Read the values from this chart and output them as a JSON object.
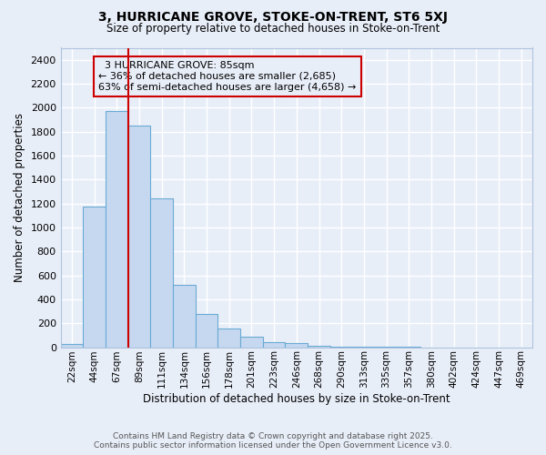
{
  "title1": "3, HURRICANE GROVE, STOKE-ON-TRENT, ST6 5XJ",
  "title2": "Size of property relative to detached houses in Stoke-on-Trent",
  "xlabel": "Distribution of detached houses by size in Stoke-on-Trent",
  "ylabel": "Number of detached properties",
  "categories": [
    "22sqm",
    "44sqm",
    "67sqm",
    "89sqm",
    "111sqm",
    "134sqm",
    "156sqm",
    "178sqm",
    "201sqm",
    "223sqm",
    "246sqm",
    "268sqm",
    "290sqm",
    "313sqm",
    "335sqm",
    "357sqm",
    "380sqm",
    "402sqm",
    "424sqm",
    "447sqm",
    "469sqm"
  ],
  "values": [
    25,
    1175,
    1975,
    1850,
    1240,
    520,
    275,
    155,
    90,
    45,
    35,
    15,
    5,
    3,
    1,
    1,
    0,
    0,
    0,
    0,
    0
  ],
  "bar_color": "#c5d8f0",
  "bar_edgecolor": "#6aaad4",
  "background_color": "#e8eef8",
  "grid_color": "#ffffff",
  "property_label": "3 HURRICANE GROVE: 85sqm",
  "pct_smaller": "36% of detached houses are smaller (2,685)",
  "pct_larger": "63% of semi-detached houses are larger (4,658)",
  "vline_color": "#cc0000",
  "annotation_box_edgecolor": "#cc0000",
  "ylim": [
    0,
    2500
  ],
  "yticks": [
    0,
    200,
    400,
    600,
    800,
    1000,
    1200,
    1400,
    1600,
    1800,
    2000,
    2200,
    2400
  ],
  "footer1": "Contains HM Land Registry data © Crown copyright and database right 2025.",
  "footer2": "Contains public sector information licensed under the Open Government Licence v3.0.",
  "vline_x_index": 3.0
}
